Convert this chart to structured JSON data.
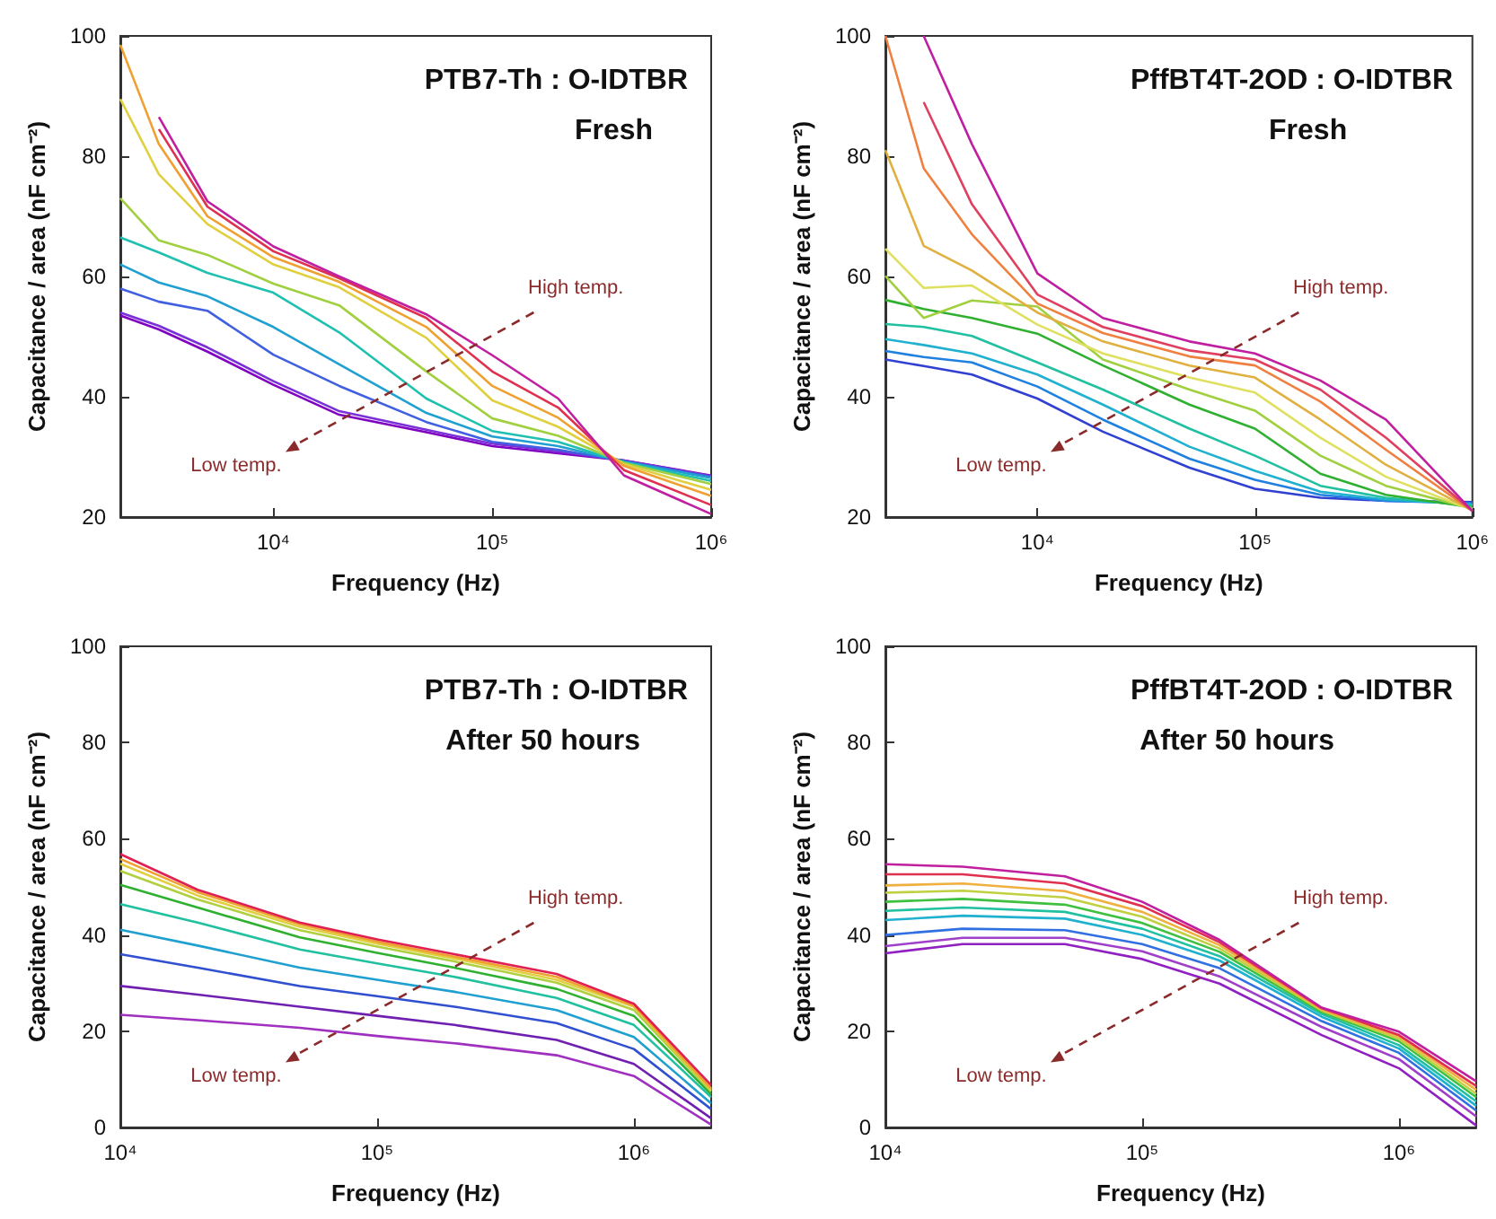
{
  "chart_data": [
    {
      "type": "line",
      "title": "PTB7-Th : O-IDTBR",
      "subtitle": "Fresh",
      "xlabel": "Frequency (Hz)",
      "ylabel": "Capacitance / area (nF cm⁻²)",
      "annotations": [
        "High temp.",
        "Low temp."
      ],
      "log": "x",
      "xlim": [
        2000,
        1000000
      ],
      "xticks": [
        {
          "value": 10000,
          "label": "10⁴"
        },
        {
          "value": 100000,
          "label": "10⁵"
        },
        {
          "value": 1000000,
          "label": "10⁶"
        }
      ],
      "ylim": [
        20,
        100
      ],
      "yticks": [
        20,
        40,
        60,
        80,
        100
      ],
      "x": [
        2000,
        3000,
        5000,
        10000,
        20000,
        50000,
        100000,
        200000,
        400000,
        1000000
      ],
      "series": [
        {
          "color": "#8000c0",
          "values": [
            53.5,
            51.2,
            47.5,
            42,
            37,
            34.1,
            31.8,
            30.6,
            29.4,
            26.9
          ]
        },
        {
          "color": "#7a30d8",
          "values": [
            54,
            51.8,
            48.2,
            42.6,
            37.6,
            34.5,
            32.2,
            30.9,
            29.4,
            26.8
          ]
        },
        {
          "color": "#4060e0",
          "values": [
            58,
            55.8,
            54.3,
            47,
            41.8,
            35.8,
            32.5,
            31.2,
            29.3,
            26.7
          ]
        },
        {
          "color": "#20a0d0",
          "values": [
            62,
            59,
            56.7,
            51.6,
            45.4,
            37.3,
            33.4,
            31.8,
            29.2,
            26.5
          ]
        },
        {
          "color": "#20c0b0",
          "values": [
            66.5,
            64,
            60.6,
            57.3,
            50.7,
            39.7,
            34.3,
            32.5,
            29.1,
            26
          ]
        },
        {
          "color": "#a0d040",
          "values": [
            73,
            66,
            63.6,
            58.8,
            55.2,
            44.2,
            36.4,
            33.5,
            29,
            25.5
          ]
        },
        {
          "color": "#e0d040",
          "values": [
            89.5,
            77,
            68.7,
            62,
            58.2,
            49.8,
            39.4,
            35,
            28.8,
            24.5
          ]
        },
        {
          "color": "#f0a030",
          "values": [
            98.5,
            82,
            70,
            63.2,
            59.1,
            51.6,
            41.8,
            36.5,
            28.5,
            23.5
          ]
        },
        {
          "color": "#e03050",
          "values": [
            null,
            84.5,
            71.6,
            64.2,
            59.7,
            53.1,
            44.2,
            38.2,
            27.8,
            22
          ]
        },
        {
          "color": "#c020a0",
          "values": [
            null,
            86.5,
            72.5,
            65,
            60,
            53.7,
            46.9,
            39.7,
            26.9,
            20.5
          ]
        }
      ]
    },
    {
      "type": "line",
      "title": "PffBT4T-2OD : O-IDTBR",
      "subtitle": "Fresh",
      "xlabel": "Frequency (Hz)",
      "ylabel": "Capacitance / area (nF cm⁻²)",
      "annotations": [
        "High temp.",
        "Low temp."
      ],
      "log": "x",
      "xlim": [
        2000,
        1000000
      ],
      "xticks": [
        {
          "value": 10000,
          "label": "10⁴"
        },
        {
          "value": 100000,
          "label": "10⁵"
        },
        {
          "value": 1000000,
          "label": "10⁶"
        }
      ],
      "ylim": [
        20,
        100
      ],
      "yticks": [
        20,
        40,
        60,
        80,
        100
      ],
      "x": [
        2000,
        3000,
        5000,
        10000,
        20000,
        50000,
        100000,
        200000,
        400000,
        1000000
      ],
      "series": [
        {
          "color": "#3040d0",
          "values": [
            46.2,
            45.1,
            43.7,
            39.7,
            34.2,
            28.2,
            24.7,
            23.2,
            22.7,
            22.5
          ]
        },
        {
          "color": "#2080e0",
          "values": [
            47.6,
            46.6,
            45.7,
            41.7,
            36.2,
            29.7,
            26.2,
            23.7,
            22.7,
            22.3
          ]
        },
        {
          "color": "#20b0d0",
          "values": [
            49.6,
            48.6,
            47.2,
            43.7,
            38.7,
            31.7,
            27.7,
            24.2,
            22.9,
            22.1
          ]
        },
        {
          "color": "#20c0a0",
          "values": [
            52.1,
            51.6,
            50.1,
            45.7,
            41.2,
            34.7,
            30.2,
            25.2,
            23.2,
            21.9
          ]
        },
        {
          "color": "#30b030",
          "values": [
            56.1,
            54.6,
            53.1,
            50.5,
            45.2,
            38.7,
            34.7,
            27.2,
            23.7,
            21.6
          ]
        },
        {
          "color": "#a0d040",
          "values": [
            60.1,
            53.1,
            56,
            55,
            46.2,
            41.2,
            37.7,
            30.2,
            25.2,
            21.4
          ]
        },
        {
          "color": "#e0e060",
          "values": [
            64.6,
            58.1,
            58.5,
            52,
            47.2,
            43.2,
            40.7,
            33.2,
            26.7,
            21.2
          ]
        },
        {
          "color": "#e0b040",
          "values": [
            81,
            65.1,
            61,
            54,
            49.2,
            45.2,
            43.2,
            36.2,
            28.7,
            21.1
          ]
        },
        {
          "color": "#f08040",
          "values": [
            100,
            78,
            67,
            55.5,
            50.6,
            46.7,
            45.2,
            39.2,
            31.2,
            21
          ]
        },
        {
          "color": "#e04060",
          "values": [
            null,
            89,
            72,
            57,
            51.6,
            47.7,
            46.2,
            41.2,
            33.2,
            21
          ]
        },
        {
          "color": "#c020a0",
          "values": [
            null,
            100,
            82,
            60.5,
            53.1,
            49.2,
            47.2,
            42.7,
            36.2,
            21
          ]
        }
      ]
    },
    {
      "type": "line",
      "title": "PTB7-Th : O-IDTBR",
      "subtitle": "After 50 hours",
      "xlabel": "Frequency (Hz)",
      "ylabel": "Capacitance / area (nF cm⁻²)",
      "annotations": [
        "High temp.",
        "Low temp."
      ],
      "log": "x",
      "xlim": [
        10000,
        2000000
      ],
      "xticks": [
        {
          "value": 10000,
          "label": "10⁴"
        },
        {
          "value": 100000,
          "label": "10⁵"
        },
        {
          "value": 1000000,
          "label": "10⁶"
        }
      ],
      "ylim": [
        0,
        100
      ],
      "yticks": [
        0,
        20,
        40,
        60,
        80,
        100
      ],
      "x": [
        10000,
        20000,
        50000,
        100000,
        200000,
        500000,
        1000000,
        2000000
      ],
      "series": [
        {
          "color": "#a030c0",
          "values": [
            23.4,
            22.3,
            20.7,
            19,
            17.5,
            15,
            10.7,
            0.6
          ]
        },
        {
          "color": "#7020b0",
          "values": [
            29.4,
            27.6,
            25.1,
            23.2,
            21.3,
            18.2,
            13.2,
            1.9
          ]
        },
        {
          "color": "#3050d0",
          "values": [
            36,
            33.2,
            29.4,
            27.3,
            25.1,
            21.7,
            16.3,
            3.8
          ]
        },
        {
          "color": "#20a0d0",
          "values": [
            41.1,
            37.8,
            33.2,
            30.7,
            28.2,
            24.4,
            18.8,
            5
          ]
        },
        {
          "color": "#20c0a0",
          "values": [
            46.4,
            42.6,
            37,
            34.1,
            31.3,
            26.9,
            21.3,
            6.3
          ]
        },
        {
          "color": "#30b030",
          "values": [
            50.4,
            45.7,
            39.5,
            36.3,
            33.2,
            28.8,
            23.2,
            6.9
          ]
        },
        {
          "color": "#b0d040",
          "values": [
            53.3,
            47.4,
            41,
            37.6,
            34.5,
            30.1,
            24.4,
            7.5
          ]
        },
        {
          "color": "#e0d040",
          "values": [
            54.8,
            48.2,
            41.7,
            38.2,
            35.1,
            30.7,
            25.1,
            7.8
          ]
        },
        {
          "color": "#f0a030",
          "values": [
            55.8,
            48.9,
            42.2,
            38.6,
            35.5,
            31.3,
            25.3,
            8.1
          ]
        },
        {
          "color": "#e02050",
          "values": [
            56.8,
            49.4,
            42.6,
            39.1,
            36,
            31.9,
            25.7,
            8.8
          ]
        }
      ]
    },
    {
      "type": "line",
      "title": "PffBT4T-2OD : O-IDTBR",
      "subtitle": "After 50 hours",
      "xlabel": "Frequency (Hz)",
      "ylabel": "Capacitance / area (nF cm⁻²)",
      "annotations": [
        "High temp.",
        "Low temp."
      ],
      "log": "x",
      "xlim": [
        10000,
        2000000
      ],
      "xticks": [
        {
          "value": 10000,
          "label": "10⁴"
        },
        {
          "value": 100000,
          "label": "10⁵"
        },
        {
          "value": 1000000,
          "label": "10⁶"
        }
      ],
      "ylim": [
        0,
        100
      ],
      "yticks": [
        0,
        20,
        40,
        60,
        80,
        100
      ],
      "x": [
        10000,
        20000,
        50000,
        100000,
        200000,
        500000,
        1000000,
        2000000
      ],
      "series": [
        {
          "color": "#9020c0",
          "values": [
            36.2,
            38.1,
            38.1,
            35,
            29.9,
            19.2,
            12.3,
            0.4
          ]
        },
        {
          "color": "#a040c8",
          "values": [
            37.7,
            39.4,
            39.4,
            36.6,
            31.4,
            20.9,
            14.2,
            2.3
          ]
        },
        {
          "color": "#3070e0",
          "values": [
            40,
            41.3,
            41,
            38.1,
            33.1,
            22.1,
            15.5,
            3.5
          ]
        },
        {
          "color": "#20b0d0",
          "values": [
            43.1,
            44,
            43.4,
            40,
            34.7,
            23,
            16.4,
            4.5
          ]
        },
        {
          "color": "#20c0a0",
          "values": [
            45,
            45.7,
            44.8,
            41.3,
            35.6,
            23.6,
            17.1,
            5.4
          ]
        },
        {
          "color": "#40c040",
          "values": [
            46.9,
            47.5,
            46.3,
            42.5,
            36.5,
            24,
            17.9,
            6.3
          ]
        },
        {
          "color": "#c0d040",
          "values": [
            48.8,
            49.2,
            47.8,
            43.8,
            37.2,
            24.3,
            18.4,
            7
          ]
        },
        {
          "color": "#f0b040",
          "values": [
            50.3,
            50.7,
            49.1,
            44.8,
            37.9,
            24.5,
            18.9,
            7.8
          ]
        },
        {
          "color": "#e03050",
          "values": [
            52.6,
            52.6,
            50.7,
            46,
            38.5,
            24.8,
            19.2,
            8.6
          ]
        },
        {
          "color": "#c020a0",
          "values": [
            54.7,
            54.2,
            52.2,
            46.9,
            39,
            24.9,
            19.9,
            9.6
          ]
        }
      ]
    }
  ]
}
